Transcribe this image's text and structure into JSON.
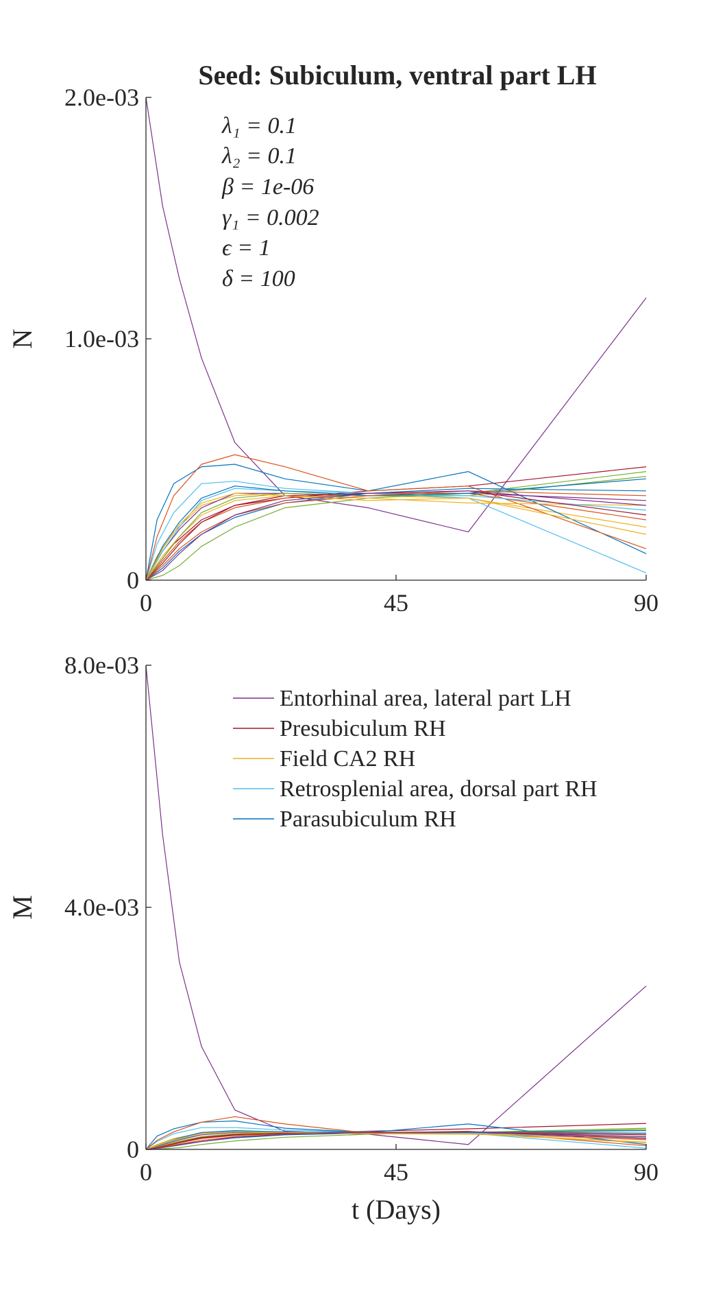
{
  "figure_title": "Seed: Subiculum, ventral part LH",
  "parameters": [
    "λ₁ = 0.1",
    "λ₂ = 0.1",
    "β = 1e-06",
    "γ₁ = 0.002",
    "ϵ = 1",
    "δ = 100"
  ],
  "chart_data": [
    {
      "type": "line",
      "title": "Seed: Subiculum, ventral part LH",
      "xlabel": "",
      "ylabel": "N",
      "xlim": [
        0,
        90
      ],
      "ylim": [
        0,
        0.002
      ],
      "xticks": [
        0,
        45,
        90
      ],
      "xtick_labels": [
        "0",
        "45",
        "90"
      ],
      "yticks": [
        0,
        0.001,
        0.002
      ],
      "ytick_labels": [
        "0",
        "1.0e-03",
        "2.0e-03"
      ],
      "grid": false,
      "series": [
        {
          "name": "Entorhinal area, lateral part LH",
          "color": "#7E2F8E",
          "x": [
            0,
            3,
            6,
            10,
            16,
            25,
            40,
            58,
            90
          ],
          "y": [
            0.002,
            0.00155,
            0.00125,
            0.00092,
            0.00057,
            0.00035,
            0.0003,
            0.0002,
            0.00117
          ]
        },
        {
          "name": "Presubiculum RH",
          "color": "#A2142F",
          "x": [
            0,
            2,
            5,
            10,
            16,
            25,
            40,
            58,
            90
          ],
          "y": [
            0,
            6e-05,
            0.00015,
            0.00025,
            0.00031,
            0.00034,
            0.00037,
            0.00039,
            0.00047
          ]
        },
        {
          "name": "Field CA2 RH",
          "color": "#EDB120",
          "x": [
            0,
            2,
            5,
            10,
            16,
            25,
            40,
            58,
            90
          ],
          "y": [
            0,
            0.0001,
            0.0002,
            0.00031,
            0.00035,
            0.00036,
            0.00035,
            0.00034,
            0.00022
          ]
        },
        {
          "name": "Retrosplenial area, dorsal part RH",
          "color": "#4DBEEE",
          "x": [
            0,
            2,
            5,
            10,
            16,
            25,
            40,
            58,
            90
          ],
          "y": [
            0,
            0.00015,
            0.00028,
            0.0004,
            0.00041,
            0.00038,
            0.00036,
            0.00034,
            3e-05
          ]
        },
        {
          "name": "Parasubiculum RH",
          "color": "#0072BD",
          "x": [
            0,
            2,
            5,
            10,
            16,
            25,
            40,
            58,
            90
          ],
          "y": [
            0,
            0.00025,
            0.0004,
            0.00047,
            0.00048,
            0.00042,
            0.00037,
            0.00045,
            0.00011
          ]
        },
        {
          "color": "#D95319",
          "x": [
            0,
            2,
            5,
            10,
            16,
            25,
            40,
            58,
            90
          ],
          "y": [
            0,
            0.00018,
            0.00035,
            0.00048,
            0.00052,
            0.00047,
            0.00037,
            0.00039,
            0.00013
          ]
        },
        {
          "color": "#77AC30",
          "x": [
            0,
            3,
            6,
            10,
            16,
            25,
            40,
            58,
            90
          ],
          "y": [
            0,
            2e-05,
            6e-05,
            0.00014,
            0.00022,
            0.0003,
            0.00034,
            0.00036,
            0.00045
          ]
        },
        {
          "color": "#0072BD",
          "x": [
            0,
            3,
            6,
            10,
            16,
            25,
            40,
            58,
            90
          ],
          "y": [
            0,
            5e-05,
            0.00012,
            0.00019,
            0.00026,
            0.00032,
            0.00036,
            0.00038,
            0.00037
          ]
        },
        {
          "color": "#D95319",
          "x": [
            0,
            3,
            6,
            10,
            16,
            25,
            40,
            58,
            90
          ],
          "y": [
            0,
            8e-05,
            0.00016,
            0.00024,
            0.0003,
            0.00034,
            0.00036,
            0.00036,
            0.00025
          ]
        },
        {
          "color": "#EDB120",
          "x": [
            0,
            3,
            6,
            10,
            16,
            25,
            40,
            58,
            90
          ],
          "y": [
            0,
            0.0001,
            0.00018,
            0.00027,
            0.00033,
            0.00035,
            0.00034,
            0.00032,
            0.00031
          ]
        },
        {
          "color": "#7E2F8E",
          "x": [
            0,
            3,
            6,
            10,
            16,
            25,
            40,
            58,
            90
          ],
          "y": [
            0,
            0.00012,
            0.00021,
            0.0003,
            0.00036,
            0.00036,
            0.00035,
            0.00036,
            0.00033
          ]
        },
        {
          "color": "#77AC30",
          "x": [
            0,
            3,
            6,
            10,
            16,
            25,
            40,
            58,
            90
          ],
          "y": [
            0,
            9e-05,
            0.00018,
            0.00028,
            0.00034,
            0.00036,
            0.00035,
            0.00035,
            0.00043
          ]
        },
        {
          "color": "#4DBEEE",
          "x": [
            0,
            3,
            6,
            10,
            16,
            25,
            40,
            58,
            90
          ],
          "y": [
            0,
            0.00012,
            0.00022,
            0.00033,
            0.00038,
            0.00037,
            0.00036,
            0.00035,
            0.00029
          ]
        },
        {
          "color": "#A2142F",
          "x": [
            0,
            3,
            6,
            10,
            16,
            25,
            40,
            58,
            90
          ],
          "y": [
            0,
            7e-05,
            0.00015,
            0.00024,
            0.00031,
            0.00035,
            0.00036,
            0.00037,
            0.00027
          ]
        },
        {
          "color": "#0072BD",
          "x": [
            0,
            3,
            6,
            10,
            16,
            25,
            40,
            58,
            90
          ],
          "y": [
            0,
            0.00014,
            0.00024,
            0.00034,
            0.00039,
            0.00037,
            0.00035,
            0.00036,
            0.00042
          ]
        },
        {
          "color": "#D95319",
          "x": [
            0,
            3,
            6,
            10,
            16,
            25,
            40,
            58,
            90
          ],
          "y": [
            0,
            6e-05,
            0.00013,
            0.0002,
            0.00027,
            0.00032,
            0.00035,
            0.00037,
            0.00035
          ]
        },
        {
          "color": "#EDB120",
          "x": [
            0,
            3,
            6,
            10,
            16,
            25,
            40,
            58,
            90
          ],
          "y": [
            0,
            0.00013,
            0.00023,
            0.00032,
            0.00036,
            0.00035,
            0.00033,
            0.00034,
            0.00019
          ]
        },
        {
          "color": "#7E2F8E",
          "x": [
            0,
            3,
            6,
            10,
            16,
            25,
            40,
            58,
            90
          ],
          "y": [
            0,
            4e-05,
            0.00011,
            0.00019,
            0.00027,
            0.00033,
            0.00036,
            0.00037,
            0.00031
          ]
        }
      ]
    },
    {
      "type": "line",
      "title": "",
      "xlabel": "t (Days)",
      "ylabel": "M",
      "xlim": [
        0,
        90
      ],
      "ylim": [
        0,
        0.008
      ],
      "xticks": [
        0,
        45,
        90
      ],
      "xtick_labels": [
        "0",
        "45",
        "90"
      ],
      "yticks": [
        0,
        0.004,
        0.008
      ],
      "ytick_labels": [
        "0",
        "4.0e-03",
        "8.0e-03"
      ],
      "grid": false,
      "legend": {
        "location": "top-right",
        "entries": [
          "Entorhinal area, lateral part LH",
          "Presubiculum RH",
          "Field CA2 RH",
          "Retrosplenial area, dorsal part RH",
          "Parasubiculum RH"
        ]
      },
      "series": [
        {
          "name": "Entorhinal area, lateral part LH",
          "color": "#7E2F8E",
          "x": [
            0,
            3,
            6,
            10,
            16,
            25,
            40,
            58,
            90
          ],
          "y": [
            0.008,
            0.0052,
            0.0031,
            0.0017,
            0.00065,
            0.0003,
            0.00025,
            8e-05,
            0.0027
          ]
        },
        {
          "name": "Presubiculum RH",
          "color": "#A2142F",
          "x": [
            0,
            2,
            5,
            10,
            16,
            25,
            40,
            58,
            90
          ],
          "y": [
            0,
            4e-05,
            0.0001,
            0.0002,
            0.00025,
            0.00028,
            0.0003,
            0.00034,
            0.00043
          ]
        },
        {
          "name": "Field CA2 RH",
          "color": "#EDB120",
          "x": [
            0,
            2,
            5,
            10,
            16,
            25,
            40,
            58,
            90
          ],
          "y": [
            0,
            8e-05,
            0.00018,
            0.00027,
            0.0003,
            0.00029,
            0.00028,
            0.00026,
            0.00012
          ]
        },
        {
          "name": "Retrosplenial area, dorsal part RH",
          "color": "#4DBEEE",
          "x": [
            0,
            2,
            5,
            10,
            16,
            25,
            40,
            58,
            90
          ],
          "y": [
            0,
            0.00013,
            0.00026,
            0.00036,
            0.00036,
            0.00032,
            0.00029,
            0.00027,
            2e-05
          ]
        },
        {
          "name": "Parasubiculum RH",
          "color": "#0072BD",
          "x": [
            0,
            2,
            5,
            10,
            16,
            25,
            40,
            58,
            90
          ],
          "y": [
            0,
            0.00022,
            0.00034,
            0.00045,
            0.00047,
            0.00035,
            0.00028,
            0.00042,
            8e-05
          ]
        },
        {
          "color": "#D95319",
          "x": [
            0,
            2,
            5,
            10,
            16,
            25,
            40,
            58,
            90
          ],
          "y": [
            0,
            0.00015,
            0.00029,
            0.00045,
            0.00054,
            0.00042,
            0.00027,
            0.0003,
            6e-05
          ]
        },
        {
          "color": "#77AC30",
          "x": [
            0,
            3,
            6,
            10,
            16,
            25,
            40,
            58,
            90
          ],
          "y": [
            0,
            1e-05,
            3e-05,
            8e-05,
            0.00014,
            0.0002,
            0.00025,
            0.00028,
            0.00035
          ]
        },
        {
          "color": "#0072BD",
          "x": [
            0,
            3,
            6,
            10,
            16,
            25,
            40,
            58,
            90
          ],
          "y": [
            0,
            3e-05,
            8e-05,
            0.00013,
            0.00019,
            0.00024,
            0.00027,
            0.00029,
            0.00027
          ]
        },
        {
          "color": "#D95319",
          "x": [
            0,
            3,
            6,
            10,
            16,
            25,
            40,
            58,
            90
          ],
          "y": [
            0,
            5e-05,
            0.00011,
            0.00018,
            0.00023,
            0.00026,
            0.00027,
            0.00027,
            0.00016
          ]
        },
        {
          "color": "#EDB120",
          "x": [
            0,
            3,
            6,
            10,
            16,
            25,
            40,
            58,
            90
          ],
          "y": [
            0,
            7e-05,
            0.00014,
            0.00021,
            0.00026,
            0.00027,
            0.00026,
            0.00025,
            0.00021
          ]
        },
        {
          "color": "#7E2F8E",
          "x": [
            0,
            3,
            6,
            10,
            16,
            25,
            40,
            58,
            90
          ],
          "y": [
            0,
            8e-05,
            0.00016,
            0.00024,
            0.00028,
            0.00028,
            0.00027,
            0.00028,
            0.00024
          ]
        },
        {
          "color": "#77AC30",
          "x": [
            0,
            3,
            6,
            10,
            16,
            25,
            40,
            58,
            90
          ],
          "y": [
            0,
            6e-05,
            0.00013,
            0.00021,
            0.00026,
            0.00028,
            0.00027,
            0.00027,
            0.00033
          ]
        },
        {
          "color": "#4DBEEE",
          "x": [
            0,
            3,
            6,
            10,
            16,
            25,
            40,
            58,
            90
          ],
          "y": [
            0,
            9e-05,
            0.00017,
            0.00026,
            0.0003,
            0.00029,
            0.00028,
            0.00027,
            0.00019
          ]
        },
        {
          "color": "#A2142F",
          "x": [
            0,
            3,
            6,
            10,
            16,
            25,
            40,
            58,
            90
          ],
          "y": [
            0,
            5e-05,
            0.00011,
            0.00019,
            0.00024,
            0.00027,
            0.00028,
            0.00029,
            0.00018
          ]
        },
        {
          "color": "#0072BD",
          "x": [
            0,
            3,
            6,
            10,
            16,
            25,
            40,
            58,
            90
          ],
          "y": [
            0,
            0.0001,
            0.00019,
            0.00028,
            0.00031,
            0.00029,
            0.00027,
            0.00028,
            0.00031
          ]
        },
        {
          "color": "#D95319",
          "x": [
            0,
            3,
            6,
            10,
            16,
            25,
            40,
            58,
            90
          ],
          "y": [
            0,
            4e-05,
            9e-05,
            0.00015,
            0.00021,
            0.00025,
            0.00027,
            0.00029,
            0.00025
          ]
        },
        {
          "color": "#EDB120",
          "x": [
            0,
            3,
            6,
            10,
            16,
            25,
            40,
            58,
            90
          ],
          "y": [
            0,
            0.0001,
            0.00018,
            0.00026,
            0.00029,
            0.00028,
            0.00026,
            0.00026,
            0.00011
          ]
        },
        {
          "color": "#7E2F8E",
          "x": [
            0,
            3,
            6,
            10,
            16,
            25,
            40,
            58,
            90
          ],
          "y": [
            0,
            3e-05,
            7e-05,
            0.00013,
            0.0002,
            0.00025,
            0.00028,
            0.00029,
            0.00021
          ]
        }
      ]
    }
  ]
}
